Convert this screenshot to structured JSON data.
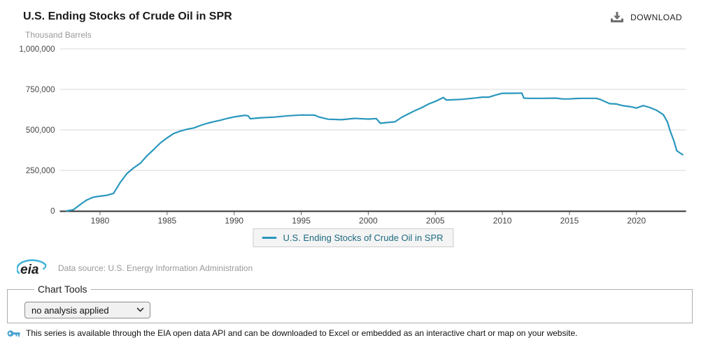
{
  "header": {
    "title": "U.S. Ending Stocks of Crude Oil in SPR",
    "download_label": "DOWNLOAD"
  },
  "chart": {
    "units_label": "Thousand Barrels",
    "legend_label": "U.S. Ending Stocks of Crude Oil in SPR"
  },
  "chart_data": {
    "type": "line",
    "title": "U.S. Ending Stocks of Crude Oil in SPR",
    "xlabel": "",
    "ylabel": "Thousand Barrels",
    "xlim": [
      1977,
      2023.7
    ],
    "ylim": [
      0,
      1000000
    ],
    "grid": true,
    "legend_position": "bottom",
    "line_color": "#2a97bd",
    "y_ticks": [
      {
        "value": 0,
        "label": "0"
      },
      {
        "value": 250000,
        "label": "250,000"
      },
      {
        "value": 500000,
        "label": "500,000"
      },
      {
        "value": 750000,
        "label": "750,000"
      },
      {
        "value": 1000000,
        "label": "1,000,000"
      }
    ],
    "x_ticks": [
      1980,
      1985,
      1990,
      1995,
      2000,
      2005,
      2010,
      2015,
      2020
    ],
    "series": [
      {
        "name": "U.S. Ending Stocks of Crude Oil in SPR",
        "x": [
          1977.5,
          1978.0,
          1978.7,
          1979.0,
          1979.5,
          1980.0,
          1980.5,
          1981.0,
          1981.5,
          1982.0,
          1982.5,
          1983.0,
          1983.5,
          1984.0,
          1984.5,
          1985.0,
          1985.5,
          1986.0,
          1986.5,
          1987.0,
          1987.5,
          1988.0,
          1988.5,
          1989.0,
          1989.5,
          1990.0,
          1990.8,
          1991.05,
          1991.2,
          1992.0,
          1993.0,
          1994.0,
          1995.0,
          1996.0,
          1996.3,
          1997.0,
          1998.0,
          1999.0,
          2000.0,
          2000.6,
          2000.9,
          2001.3,
          2002.0,
          2002.5,
          2003.0,
          2003.5,
          2004.0,
          2004.5,
          2005.0,
          2005.6,
          2005.8,
          2006.0,
          2007.0,
          2008.0,
          2008.5,
          2009.0,
          2009.5,
          2010.0,
          2011.0,
          2011.45,
          2011.6,
          2012.0,
          2013.0,
          2014.0,
          2014.5,
          2015.0,
          2015.5,
          2016.0,
          2016.5,
          2017.0,
          2017.3,
          2017.7,
          2018.0,
          2018.5,
          2019.0,
          2019.5,
          2020.0,
          2020.5,
          2021.0,
          2021.5,
          2022.0,
          2022.3,
          2022.5,
          2022.8,
          2023.0,
          2023.2,
          2023.45
        ],
        "values": [
          0,
          7000,
          50000,
          67000,
          85000,
          91000,
          96000,
          108000,
          175000,
          230000,
          265000,
          294000,
          340000,
          379000,
          420000,
          451000,
          478000,
          493000,
          504000,
          512000,
          528000,
          541000,
          551000,
          560000,
          571000,
          580000,
          590000,
          586000,
          569000,
          575000,
          579000,
          587000,
          592000,
          591000,
          580000,
          566000,
          563000,
          571000,
          567000,
          570000,
          541000,
          545000,
          550000,
          578000,
          599000,
          620000,
          638000,
          660000,
          676000,
          700000,
          685000,
          685000,
          689000,
          697000,
          702000,
          702000,
          715000,
          726000,
          726500,
          727000,
          696000,
          695000,
          695000,
          696000,
          691000,
          691000,
          694000,
          695000,
          695000,
          695000,
          688000,
          673000,
          662000,
          660000,
          649000,
          644000,
          635000,
          650000,
          638000,
          621000,
          594000,
          550000,
          497000,
          430000,
          372000,
          360000,
          347000
        ]
      }
    ]
  },
  "footer": {
    "logo_text": "eia",
    "data_source": "Data source: U.S. Energy Information Administration"
  },
  "chart_tools": {
    "legend": "Chart Tools",
    "selected_option": "no analysis applied"
  },
  "api_note": {
    "text": "This series is available through the EIA open data API and can be downloaded to Excel or embedded as an interactive chart or map on your website."
  },
  "colors": {
    "line": "#2a97bd",
    "legend_text": "#1d6a80",
    "gridline": "#d9d9d9",
    "axis": "#333333",
    "logo_swoosh": "#45b5d8",
    "key_icon": "#4aa3cf",
    "download_icon": "#6e6e6e"
  }
}
